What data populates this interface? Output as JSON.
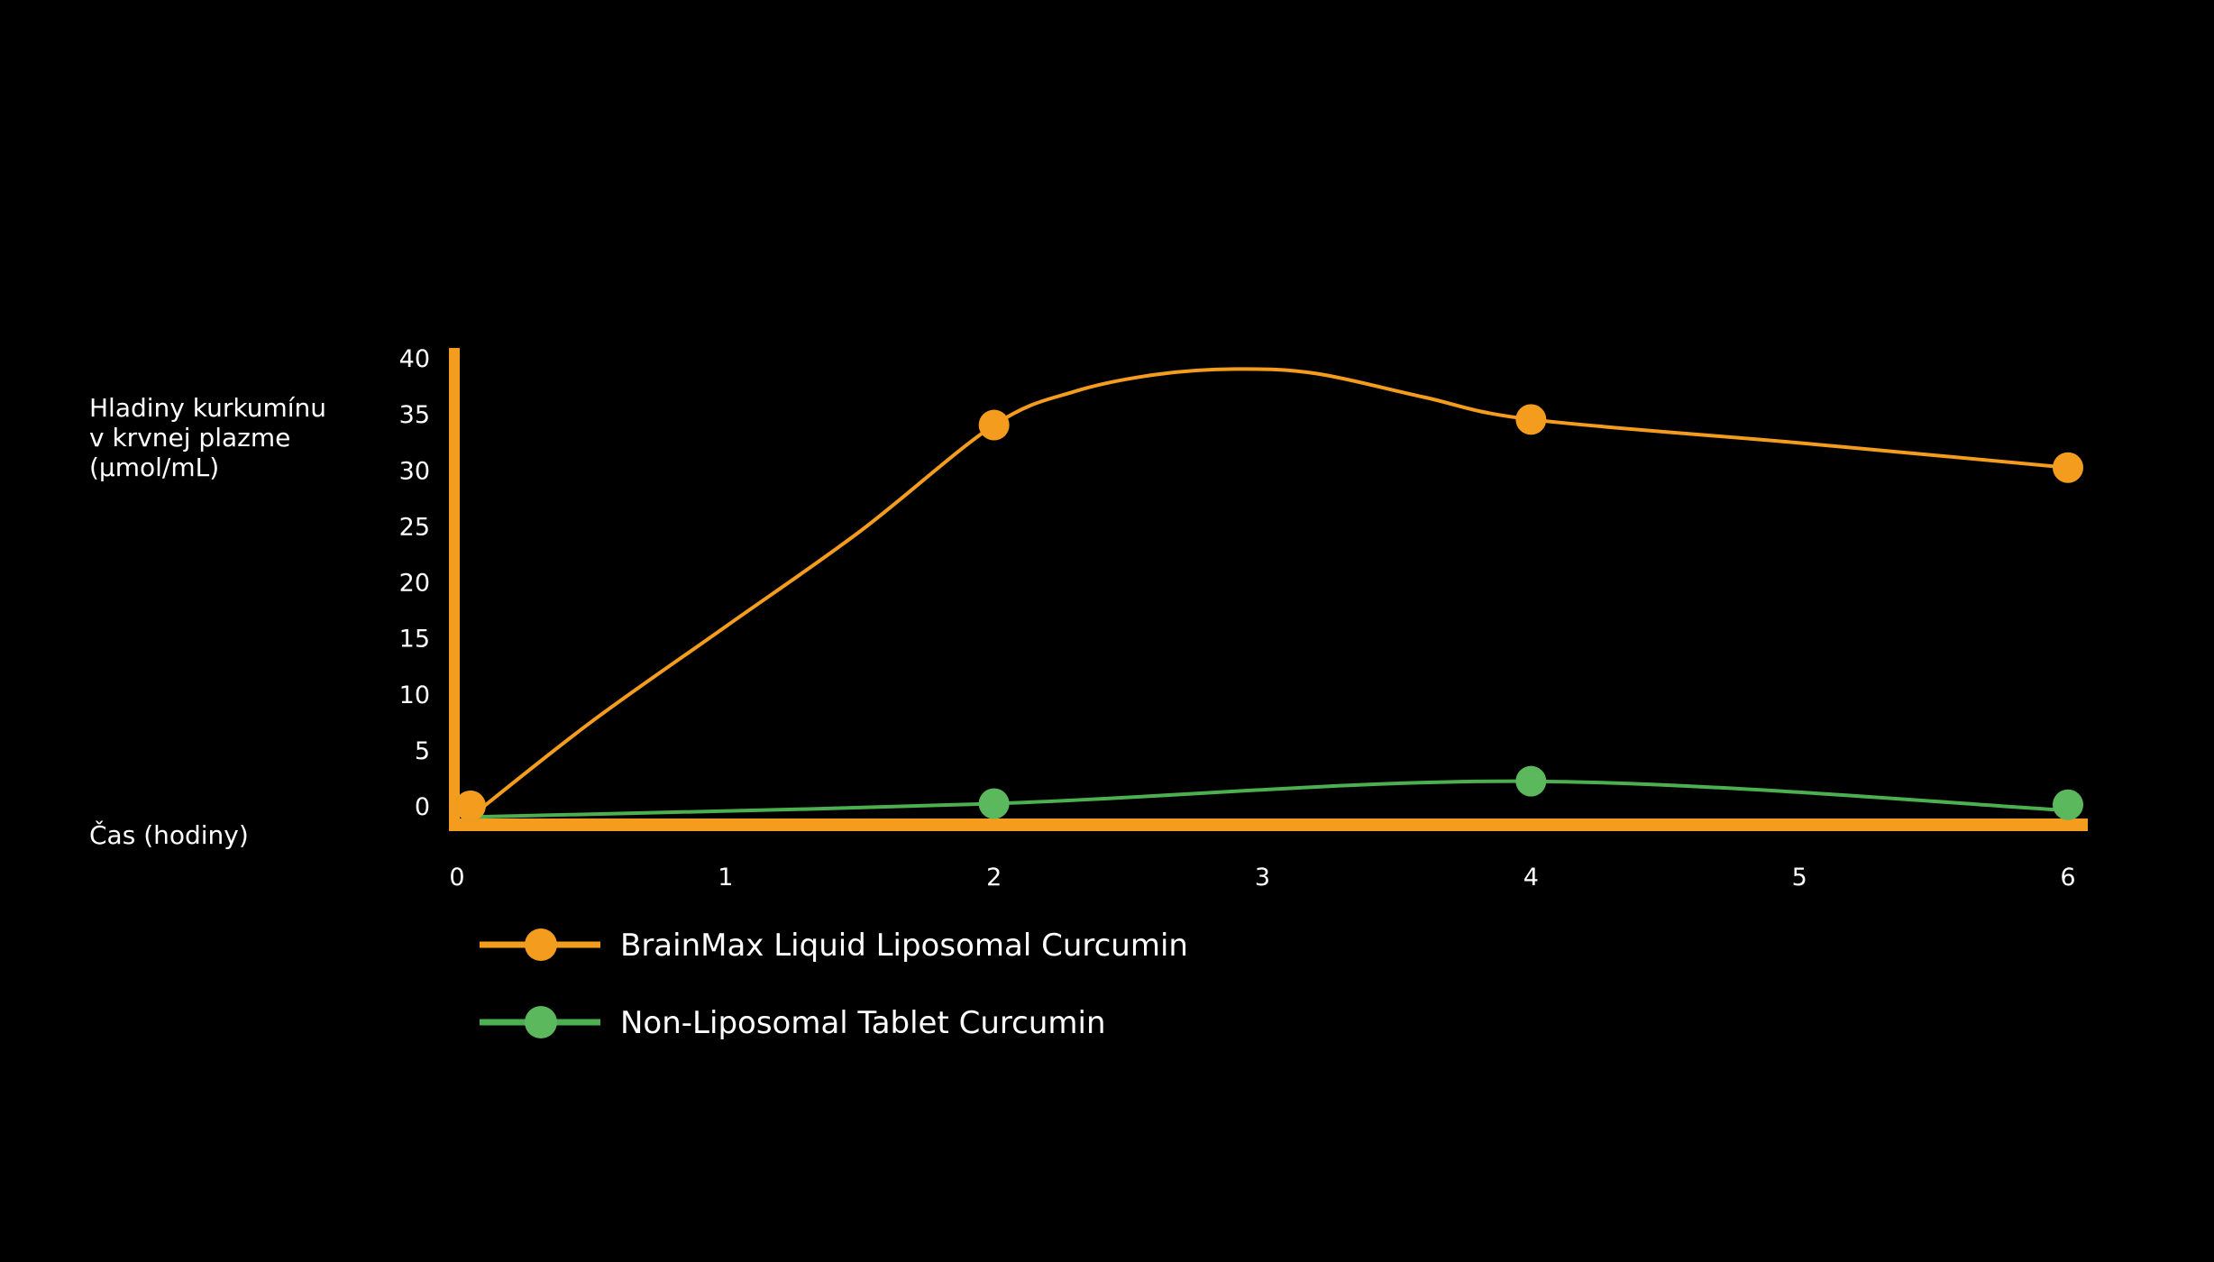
{
  "chart_data": {
    "type": "line",
    "ylabel_lines": [
      "Hladiny kurkumínu",
      "v krvnej plazme",
      "(µmol/mL)"
    ],
    "xlabel": "Čas (hodiny)",
    "x_ticks": [
      0,
      1,
      2,
      3,
      4,
      5,
      6
    ],
    "y_ticks": [
      0,
      5,
      10,
      15,
      20,
      25,
      30,
      35,
      40
    ],
    "xlim": [
      0,
      6
    ],
    "ylim": [
      0,
      40
    ],
    "grid": false,
    "legend_position": "bottom-left",
    "series": [
      {
        "name": "BrainMax Liquid Liposomal Curcumin",
        "color": "#F39C1E",
        "marker_color": "#F39C1E",
        "points": [
          [
            0.05,
            0
          ],
          [
            2,
            34
          ],
          [
            4,
            34.5
          ],
          [
            6,
            30.2
          ]
        ],
        "curve": [
          [
            0.05,
            -1
          ],
          [
            0.5,
            7.5
          ],
          [
            1,
            16
          ],
          [
            1.5,
            24.5
          ],
          [
            2,
            34
          ],
          [
            2.3,
            37
          ],
          [
            2.6,
            38.5
          ],
          [
            2.9,
            39
          ],
          [
            3.2,
            38.6
          ],
          [
            3.6,
            36.5
          ],
          [
            4,
            34.5
          ],
          [
            5,
            32.4
          ],
          [
            6,
            30.2
          ]
        ]
      },
      {
        "name": "Non-Liposomal Tablet Curcumin",
        "color": "#4CAF50",
        "marker_color": "#5CB85C",
        "points": [
          [
            0.05,
            0
          ],
          [
            2,
            0.2
          ],
          [
            4,
            2.2
          ],
          [
            6,
            0.1
          ]
        ],
        "curve": [
          [
            0.05,
            -1
          ],
          [
            2,
            0.2
          ],
          [
            4,
            2.2
          ],
          [
            6,
            -0.4
          ]
        ]
      }
    ]
  }
}
